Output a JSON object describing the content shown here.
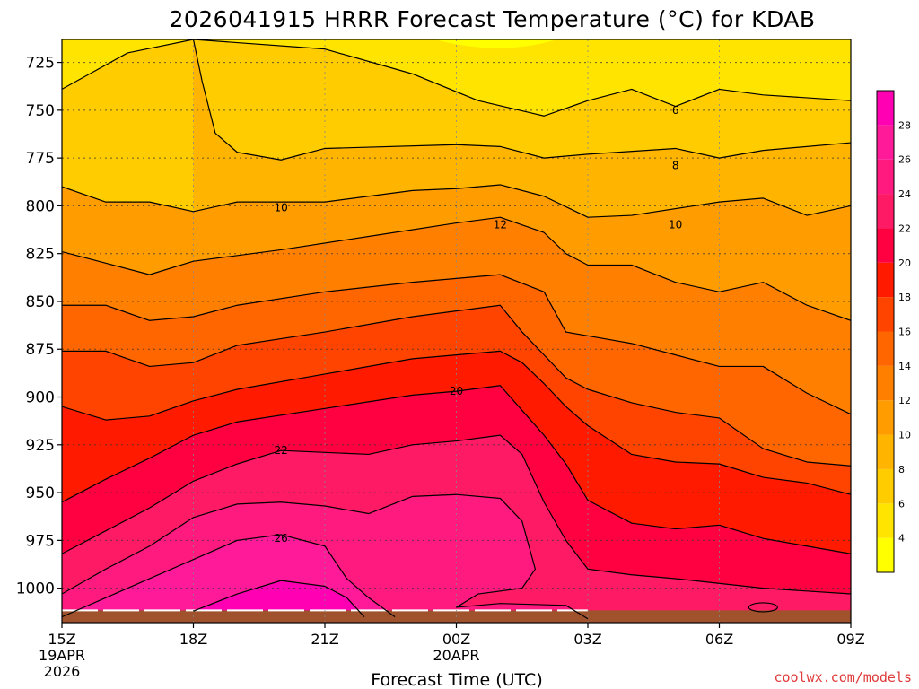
{
  "chart_data": {
    "type": "contour",
    "title": "2026041915 HRRR Forecast Temperature (°C) for KDAB",
    "xlabel": "Forecast Time (UTC)",
    "credit": "coolwx.com/models",
    "x_ticks": [
      {
        "hour": 0,
        "label": "15Z",
        "sub": "19APR",
        "year": "2026"
      },
      {
        "hour": 3,
        "label": "18Z",
        "sub": "",
        "year": ""
      },
      {
        "hour": 6,
        "label": "21Z",
        "sub": "",
        "year": ""
      },
      {
        "hour": 9,
        "label": "00Z",
        "sub": "20APR",
        "year": ""
      },
      {
        "hour": 12,
        "label": "03Z",
        "sub": "",
        "year": ""
      },
      {
        "hour": 15,
        "label": "06Z",
        "sub": "",
        "year": ""
      },
      {
        "hour": 18,
        "label": "09Z",
        "sub": "",
        "year": ""
      }
    ],
    "x_range": [
      0,
      18
    ],
    "y_range": [
      713,
      1018
    ],
    "y_ticks": [
      725,
      750,
      775,
      800,
      825,
      850,
      875,
      900,
      925,
      950,
      975,
      1000
    ],
    "surface_pressure_hpa": 1013,
    "grid": true,
    "colorbar": {
      "ticks": [
        4,
        6,
        8,
        10,
        12,
        14,
        16,
        18,
        20,
        22,
        24,
        26,
        28
      ],
      "levels": [
        {
          "min": 2,
          "max": 4,
          "color": "#ffff00"
        },
        {
          "min": 4,
          "max": 6,
          "color": "#ffe400"
        },
        {
          "min": 6,
          "max": 8,
          "color": "#ffcc00"
        },
        {
          "min": 8,
          "max": 10,
          "color": "#ffb400"
        },
        {
          "min": 10,
          "max": 12,
          "color": "#ff9c00"
        },
        {
          "min": 12,
          "max": 14,
          "color": "#ff8000"
        },
        {
          "min": 14,
          "max": 16,
          "color": "#ff6600"
        },
        {
          "min": 16,
          "max": 18,
          "color": "#ff4400"
        },
        {
          "min": 18,
          "max": 20,
          "color": "#ff1a00"
        },
        {
          "min": 20,
          "max": 22,
          "color": "#ff0040"
        },
        {
          "min": 22,
          "max": 24,
          "color": "#ff1a66"
        },
        {
          "min": 24,
          "max": 26,
          "color": "#ff1a80"
        },
        {
          "min": 26,
          "max": 28,
          "color": "#ff1a99"
        },
        {
          "min": 28,
          "max": 30,
          "color": "#ff00b3"
        }
      ]
    },
    "contour_labels": [
      {
        "value": 6,
        "text": "6",
        "hour": 14.0,
        "p": 750
      },
      {
        "value": 8,
        "text": "8",
        "hour": 14.0,
        "p": 779
      },
      {
        "value": 10,
        "text": "10",
        "hour": 5.0,
        "p": 801
      },
      {
        "value": 10,
        "text": "10",
        "hour": 14.0,
        "p": 810
      },
      {
        "value": 12,
        "text": "12",
        "hour": 10.0,
        "p": 810
      },
      {
        "value": 20,
        "text": "20",
        "hour": 9.0,
        "p": 897
      },
      {
        "value": 22,
        "text": "22",
        "hour": 5.0,
        "p": 928
      },
      {
        "value": 26,
        "text": "26",
        "hour": 5.0,
        "p": 974
      }
    ],
    "isotherms": [
      {
        "value": 6,
        "points": [
          [
            0,
            739
          ],
          [
            1.5,
            720
          ],
          [
            3,
            713
          ],
          [
            6,
            718
          ],
          [
            8,
            731
          ],
          [
            9.5,
            745
          ],
          [
            11,
            753
          ],
          [
            12,
            745
          ],
          [
            13,
            739
          ],
          [
            14,
            748
          ],
          [
            15,
            739
          ],
          [
            16,
            742
          ],
          [
            18,
            745
          ]
        ]
      },
      {
        "value": 8,
        "points": [
          [
            3,
            713
          ],
          [
            3.2,
            735
          ],
          [
            3.5,
            762
          ],
          [
            4,
            772
          ],
          [
            5,
            776
          ],
          [
            6,
            770
          ],
          [
            9,
            768
          ],
          [
            10,
            769
          ],
          [
            11,
            775
          ],
          [
            12,
            773
          ],
          [
            14,
            770
          ],
          [
            15,
            775
          ],
          [
            16,
            771
          ],
          [
            18,
            767
          ]
        ]
      },
      {
        "value": 10,
        "points": [
          [
            0,
            790
          ],
          [
            1,
            798
          ],
          [
            2,
            798
          ],
          [
            3,
            803
          ],
          [
            4,
            798
          ],
          [
            6,
            798
          ],
          [
            7,
            795
          ],
          [
            8,
            792
          ],
          [
            9,
            791
          ],
          [
            10,
            789
          ],
          [
            11,
            795
          ],
          [
            12,
            806
          ],
          [
            13,
            805
          ],
          [
            15,
            798
          ],
          [
            16,
            796
          ],
          [
            17,
            805
          ],
          [
            18,
            800
          ]
        ]
      },
      {
        "value": 12,
        "points": [
          [
            0,
            824
          ],
          [
            1,
            830
          ],
          [
            2,
            836
          ],
          [
            3,
            829
          ],
          [
            5,
            823
          ],
          [
            7,
            816
          ],
          [
            9,
            809
          ],
          [
            10,
            806
          ],
          [
            11,
            814
          ],
          [
            11.5,
            825
          ],
          [
            12,
            831
          ],
          [
            13,
            831
          ],
          [
            14,
            840
          ],
          [
            15,
            845
          ],
          [
            16,
            840
          ],
          [
            17,
            852
          ],
          [
            18,
            860
          ]
        ]
      },
      {
        "value": 14,
        "points": [
          [
            0,
            852
          ],
          [
            1,
            852
          ],
          [
            2,
            860
          ],
          [
            3,
            858
          ],
          [
            4,
            852
          ],
          [
            6,
            845
          ],
          [
            8,
            840
          ],
          [
            9,
            838
          ],
          [
            10,
            836
          ],
          [
            11,
            845
          ],
          [
            11.5,
            866
          ],
          [
            12,
            868
          ],
          [
            13,
            872
          ],
          [
            14,
            878
          ],
          [
            15,
            884
          ],
          [
            16,
            884
          ],
          [
            17,
            898
          ],
          [
            18,
            909
          ]
        ]
      },
      {
        "value": 16,
        "points": [
          [
            0,
            876
          ],
          [
            1,
            876
          ],
          [
            2,
            884
          ],
          [
            3,
            882
          ],
          [
            4,
            873
          ],
          [
            6,
            866
          ],
          [
            8,
            858
          ],
          [
            9,
            855
          ],
          [
            10,
            852
          ],
          [
            10.5,
            866
          ],
          [
            11,
            878
          ],
          [
            11.5,
            890
          ],
          [
            12,
            896
          ],
          [
            13,
            903
          ],
          [
            14,
            908
          ],
          [
            15,
            911
          ],
          [
            16,
            927
          ],
          [
            17,
            934
          ],
          [
            18,
            936
          ]
        ]
      },
      {
        "value": 18,
        "points": [
          [
            0,
            905
          ],
          [
            1,
            912
          ],
          [
            2,
            910
          ],
          [
            3,
            902
          ],
          [
            4,
            896
          ],
          [
            6,
            888
          ],
          [
            8,
            880
          ],
          [
            9,
            878
          ],
          [
            10,
            876
          ],
          [
            10.5,
            882
          ],
          [
            11,
            893
          ],
          [
            11.5,
            905
          ],
          [
            12,
            915
          ],
          [
            13,
            930
          ],
          [
            14,
            934
          ],
          [
            15,
            935
          ],
          [
            16,
            942
          ],
          [
            17,
            945
          ],
          [
            18,
            951
          ]
        ]
      },
      {
        "value": 20,
        "points": [
          [
            0,
            955
          ],
          [
            1,
            943
          ],
          [
            2,
            932
          ],
          [
            3,
            920
          ],
          [
            4,
            913
          ],
          [
            6,
            906
          ],
          [
            8,
            899
          ],
          [
            9,
            897
          ],
          [
            10,
            894
          ],
          [
            10.5,
            907
          ],
          [
            11,
            920
          ],
          [
            11.5,
            935
          ],
          [
            12,
            954
          ],
          [
            13,
            966
          ],
          [
            14,
            969
          ],
          [
            15,
            967
          ],
          [
            16,
            974
          ],
          [
            18,
            982
          ]
        ]
      },
      {
        "value": 22,
        "points": [
          [
            0,
            982
          ],
          [
            1,
            970
          ],
          [
            2,
            958
          ],
          [
            3,
            944
          ],
          [
            4,
            935
          ],
          [
            5,
            928
          ],
          [
            7,
            930
          ],
          [
            8,
            925
          ],
          [
            9,
            923
          ],
          [
            10,
            920
          ],
          [
            10.5,
            930
          ],
          [
            11,
            955
          ],
          [
            11.5,
            975
          ],
          [
            12,
            990
          ],
          [
            13,
            993
          ],
          [
            14,
            995
          ],
          [
            16,
            1000
          ],
          [
            18,
            1003
          ]
        ]
      },
      {
        "value": 24,
        "points": [
          [
            0,
            1003
          ],
          [
            1,
            990
          ],
          [
            2,
            978
          ],
          [
            3,
            963
          ],
          [
            4,
            956
          ],
          [
            5,
            955
          ],
          [
            6,
            957
          ],
          [
            7,
            961
          ],
          [
            8,
            952
          ],
          [
            9,
            951
          ],
          [
            10,
            953
          ],
          [
            10.5,
            965
          ],
          [
            10.8,
            990
          ],
          [
            10.5,
            1000
          ],
          [
            9.5,
            1003
          ],
          [
            9.0,
            1010
          ],
          [
            10,
            1008
          ],
          [
            11.5,
            1009
          ],
          [
            12,
            1016
          ]
        ]
      },
      {
        "value": 26,
        "points": [
          [
            0,
            1015
          ],
          [
            1,
            1005
          ],
          [
            2,
            995
          ],
          [
            3,
            985
          ],
          [
            4,
            975
          ],
          [
            5,
            972
          ],
          [
            6,
            978
          ],
          [
            6.5,
            995
          ],
          [
            7,
            1005
          ],
          [
            7.6,
            1015
          ]
        ]
      },
      {
        "value": 28,
        "points": [
          [
            3,
            1012
          ],
          [
            4,
            1003
          ],
          [
            5,
            996
          ],
          [
            6,
            999
          ],
          [
            6.5,
            1005
          ],
          [
            6.9,
            1015
          ]
        ]
      }
    ],
    "small_contour": {
      "value": 20,
      "center_hour": 16.0,
      "center_p": 1010
    }
  }
}
